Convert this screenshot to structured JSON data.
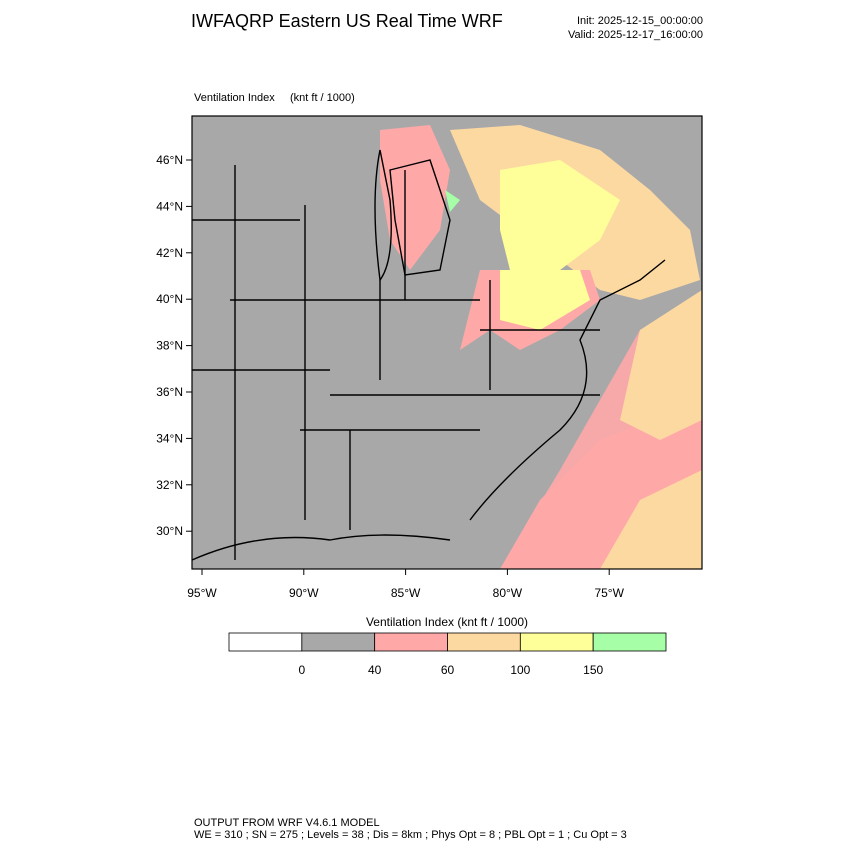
{
  "header": {
    "title": "IWFAQRP Eastern US Real Time WRF",
    "init": "Init: 2025-12-15_00:00:00",
    "valid": "Valid: 2025-12-17_16:00:00"
  },
  "map": {
    "field": "Ventilation Index",
    "units": "(knt ft / 1000)",
    "lat_labels": [
      "46°N",
      "44°N",
      "42°N",
      "40°N",
      "38°N",
      "36°N",
      "34°N",
      "32°N",
      "30°N"
    ],
    "lon_labels": [
      "95°W",
      "90°W",
      "85°W",
      "80°W",
      "75°W"
    ]
  },
  "colorbar": {
    "title": "Ventilation Index  (knt ft / 1000)",
    "ticks": [
      0,
      40,
      60,
      100,
      150
    ],
    "colors": [
      "#ffffff",
      "#a8a8a8",
      "#ffa8a8",
      "#fdd9a2",
      "#ffff99",
      "#a6ffa6"
    ]
  },
  "footer": {
    "line1": "OUTPUT FROM WRF V4.6.1 MODEL",
    "line2": "WE = 310 ; SN = 275 ; Levels = 38 ; Dis = 8km ; Phys Opt = 8 ; PBL Opt = 1 ; Cu Opt = 3"
  }
}
